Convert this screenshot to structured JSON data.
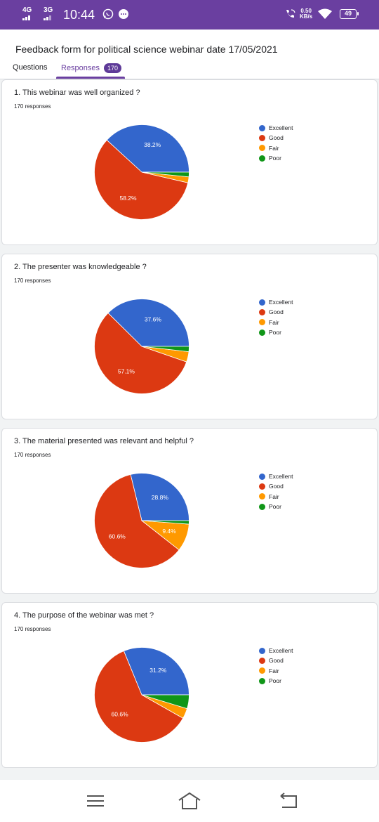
{
  "status": {
    "signal1": "4G",
    "signal2": "3G",
    "time": "10:44",
    "net_speed_value": "0.50",
    "net_speed_unit": "KB/s",
    "battery": "49"
  },
  "form": {
    "title": "Feedback form for political science webinar date 17/05/2021",
    "tabs": {
      "questions": "Questions",
      "responses": "Responses",
      "responses_count": "170"
    }
  },
  "colors": {
    "excellent": "#3366cc",
    "good": "#dc3912",
    "fair": "#ff9900",
    "poor": "#109618",
    "accent": "#6a3fa0"
  },
  "legend": [
    "Excellent",
    "Good",
    "Fair",
    "Poor"
  ],
  "questions": [
    {
      "title": "1. This webinar was well organized ?",
      "responses": "170 responses"
    },
    {
      "title": "2. The presenter was knowledgeable ?",
      "responses": "170 responses"
    },
    {
      "title": "3. The material presented was relevant and helpful ?",
      "responses": "170 responses"
    },
    {
      "title": "4. The purpose of the webinar was met ?",
      "responses": "170 responses"
    }
  ],
  "chart_data": [
    {
      "type": "pie",
      "categories": [
        "Excellent",
        "Good",
        "Fair",
        "Poor"
      ],
      "values": [
        38.2,
        58.2,
        2.0,
        1.6
      ],
      "labels": [
        "38.2%",
        "58.2%",
        "",
        ""
      ],
      "legend": "right"
    },
    {
      "type": "pie",
      "categories": [
        "Excellent",
        "Good",
        "Fair",
        "Poor"
      ],
      "values": [
        37.6,
        57.1,
        3.5,
        1.8
      ],
      "labels": [
        "37.6%",
        "57.1%",
        "",
        ""
      ],
      "legend": "right"
    },
    {
      "type": "pie",
      "categories": [
        "Excellent",
        "Good",
        "Fair",
        "Poor"
      ],
      "values": [
        28.8,
        60.6,
        9.4,
        1.2
      ],
      "labels": [
        "28.8%",
        "60.6%",
        "9.4%",
        ""
      ],
      "legend": "right"
    },
    {
      "type": "pie",
      "categories": [
        "Excellent",
        "Good",
        "Fair",
        "Poor"
      ],
      "values": [
        31.2,
        60.6,
        3.5,
        4.7
      ],
      "labels": [
        "31.2%",
        "60.6%",
        "",
        ""
      ],
      "legend": "right"
    }
  ]
}
